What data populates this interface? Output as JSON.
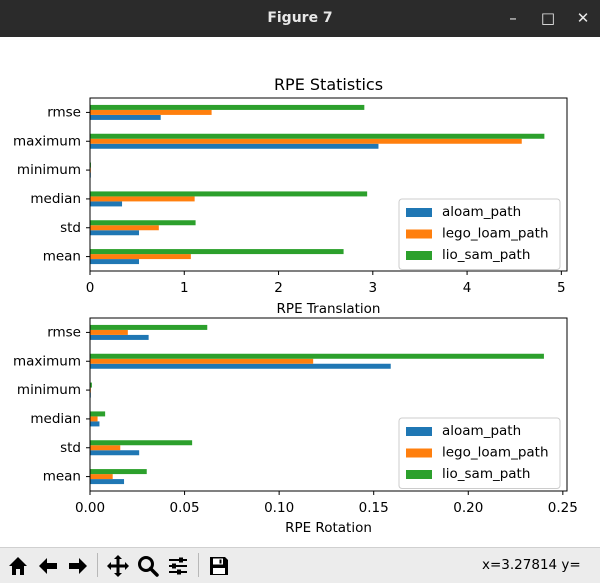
{
  "window": {
    "title": "Figure 7",
    "minimize_symbol": "–",
    "maximize_symbol": "□",
    "close_symbol": "✕"
  },
  "toolbar": {
    "buttons": [
      {
        "name": "home-button",
        "icon": "home-icon"
      },
      {
        "name": "back-button",
        "icon": "arrow-left-icon"
      },
      {
        "name": "forward-button",
        "icon": "arrow-right-icon"
      },
      {
        "name": "pan-button",
        "icon": "move-icon"
      },
      {
        "name": "zoom-button",
        "icon": "magnifier-icon"
      },
      {
        "name": "subplots-button",
        "icon": "sliders-icon"
      },
      {
        "name": "save-button",
        "icon": "floppy-icon"
      }
    ],
    "coords": "x=3.27814      y="
  },
  "chart_data": [
    {
      "type": "bar",
      "orientation": "horizontal",
      "title": "RPE Statistics",
      "xlabel": "RPE Translation",
      "categories": [
        "mean",
        "std",
        "median",
        "minimum",
        "maximum",
        "rmse"
      ],
      "xlim": [
        0,
        5.06
      ],
      "xticks": [
        0,
        1,
        2,
        3,
        4,
        5
      ],
      "xtick_labels": [
        "0",
        "1",
        "2",
        "3",
        "4",
        "5"
      ],
      "legend_position": "lower-right",
      "series": [
        {
          "name": "aloam_path",
          "color": "#1f77b4",
          "values": [
            0.52,
            0.52,
            0.34,
            0.005,
            3.06,
            0.75
          ]
        },
        {
          "name": "lego_loam_path",
          "color": "#ff7f0e",
          "values": [
            1.07,
            0.73,
            1.11,
            0.005,
            4.58,
            1.29
          ]
        },
        {
          "name": "lio_sam_path",
          "color": "#2ca02c",
          "values": [
            2.69,
            1.12,
            2.94,
            0.01,
            4.82,
            2.91
          ]
        }
      ]
    },
    {
      "type": "bar",
      "orientation": "horizontal",
      "title": "",
      "xlabel": "RPE Rotation",
      "categories": [
        "mean",
        "std",
        "median",
        "minimum",
        "maximum",
        "rmse"
      ],
      "xlim": [
        0,
        0.2522
      ],
      "xticks": [
        0,
        0.05,
        0.1,
        0.15,
        0.2,
        0.25
      ],
      "xtick_labels": [
        "0.00",
        "0.05",
        "0.10",
        "0.15",
        "0.20",
        "0.25"
      ],
      "legend_position": "lower-right",
      "series": [
        {
          "name": "aloam_path",
          "color": "#1f77b4",
          "values": [
            0.018,
            0.026,
            0.005,
            0.0003,
            0.159,
            0.031
          ]
        },
        {
          "name": "lego_loam_path",
          "color": "#ff7f0e",
          "values": [
            0.012,
            0.016,
            0.004,
            0.0003,
            0.118,
            0.02
          ]
        },
        {
          "name": "lio_sam_path",
          "color": "#2ca02c",
          "values": [
            0.03,
            0.054,
            0.008,
            0.001,
            0.24,
            0.062
          ]
        }
      ]
    }
  ]
}
